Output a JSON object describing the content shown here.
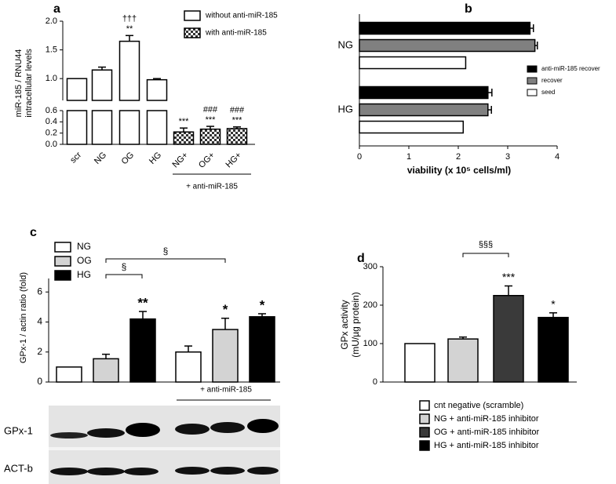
{
  "chart_data": [
    {
      "type": "bar",
      "panel_label": "a",
      "y_label": [
        "miR-185 / RNU44",
        "intracellular levels"
      ],
      "categories": [
        "scr",
        "NG",
        "OG",
        "HG",
        "NG+",
        "OG+",
        "HG+"
      ],
      "series": [
        {
          "name": "without anti-miR-185",
          "color": "#ffffff",
          "values": [
            1.0,
            1.15,
            1.65,
            0.98,
            null,
            null,
            null
          ],
          "errors": [
            null,
            0.05,
            0.1,
            0.02,
            null,
            null,
            null
          ]
        },
        {
          "name": "with anti-miR-185",
          "color": "checker",
          "values": [
            null,
            null,
            null,
            null,
            0.22,
            0.27,
            0.28
          ],
          "errors": [
            null,
            null,
            null,
            null,
            0.07,
            0.05,
            0.03
          ]
        }
      ],
      "annotations": [
        [],
        [],
        [
          "†††",
          "**"
        ],
        [],
        [
          "***"
        ],
        [
          "###",
          "***"
        ],
        [
          "###",
          "***"
        ]
      ],
      "axes": [
        {
          "ylim": [
            0.62,
            2.0
          ],
          "yticks": [
            {
              "value": 1,
              "label": "1.0"
            },
            {
              "value": 1.5,
              "label": "1.5"
            },
            {
              "value": 2,
              "label": "2.0"
            }
          ]
        },
        {
          "ylim": [
            0,
            0.6
          ],
          "yticks": [
            {
              "value": 0,
              "label": "0.0"
            },
            {
              "value": 0.2,
              "label": "0.2"
            },
            {
              "value": 0.4,
              "label": "0.4"
            },
            {
              "value": 0.6,
              "label": "0.6"
            }
          ]
        }
      ],
      "group_label": "+ anti-miR-185",
      "legend": "upper right"
    },
    {
      "type": "hbar",
      "panel_label": "b",
      "x_label": "viability (x 10⁵ cells/ml)",
      "categories": [
        "NG",
        "HG"
      ],
      "series": [
        {
          "name": "anti-miR-185 recover",
          "color": "#000000",
          "values": [
            3.45,
            2.6
          ],
          "errors": [
            0.07,
            0.08
          ]
        },
        {
          "name": "recover",
          "color": "#808080",
          "values": [
            3.55,
            2.6
          ],
          "errors": [
            0.05,
            0.07
          ]
        },
        {
          "name": "seed",
          "color": "#ffffff",
          "values": [
            2.15,
            2.1
          ],
          "errors": [
            null,
            null
          ]
        }
      ],
      "xlim": [
        0,
        4
      ],
      "xticks": [
        0,
        1,
        2,
        3,
        4
      ],
      "legend": "right"
    },
    {
      "type": "grouped_bar",
      "panel_label": "c",
      "y_label": "GPx-1 / actin ratio (fold)",
      "categories": [
        null,
        "+ anti-miR-185"
      ],
      "series": [
        {
          "name": "NG",
          "color": "#ffffff",
          "values": [
            1.0,
            2.0
          ],
          "errors": [
            null,
            0.4
          ],
          "annotations": [
            null,
            null
          ]
        },
        {
          "name": "OG",
          "color": "#d3d3d3",
          "values": [
            1.55,
            3.5
          ],
          "errors": [
            0.3,
            0.75
          ],
          "annotations": [
            null,
            "*"
          ]
        },
        {
          "name": "HG",
          "color": "#000000",
          "values": [
            4.2,
            4.35
          ],
          "errors": [
            0.5,
            0.2
          ],
          "annotations": [
            "**",
            "*"
          ]
        }
      ],
      "bracket_labels": [
        "§",
        "§"
      ],
      "ylim": [
        0,
        6.9
      ],
      "yticks": [
        0,
        2,
        4,
        6
      ],
      "legend": "upper left",
      "blot_labels": [
        "GPx-1",
        "ACT-b"
      ]
    },
    {
      "type": "bar",
      "panel_label": "d",
      "y_label": [
        "GPx activity",
        "(mU/µg protein)"
      ],
      "categories": [
        "cnt negative (scramble)",
        "NG + anti-miR-185 inhibitor",
        "OG + anti-miR-185 inhibitor",
        "HG + anti-miR-185 inhibitor"
      ],
      "colors": [
        "#ffffff",
        "#d3d3d3",
        "#3a3a3a",
        "#000000"
      ],
      "values": [
        100,
        112,
        225,
        168
      ],
      "errors": [
        null,
        5,
        25,
        12
      ],
      "annotations": [
        null,
        null,
        "***",
        "*"
      ],
      "bracket_label": "§§§",
      "ylim": [
        0,
        300
      ],
      "yticks": [
        0,
        100,
        200,
        300
      ],
      "legend": "bottom"
    }
  ]
}
